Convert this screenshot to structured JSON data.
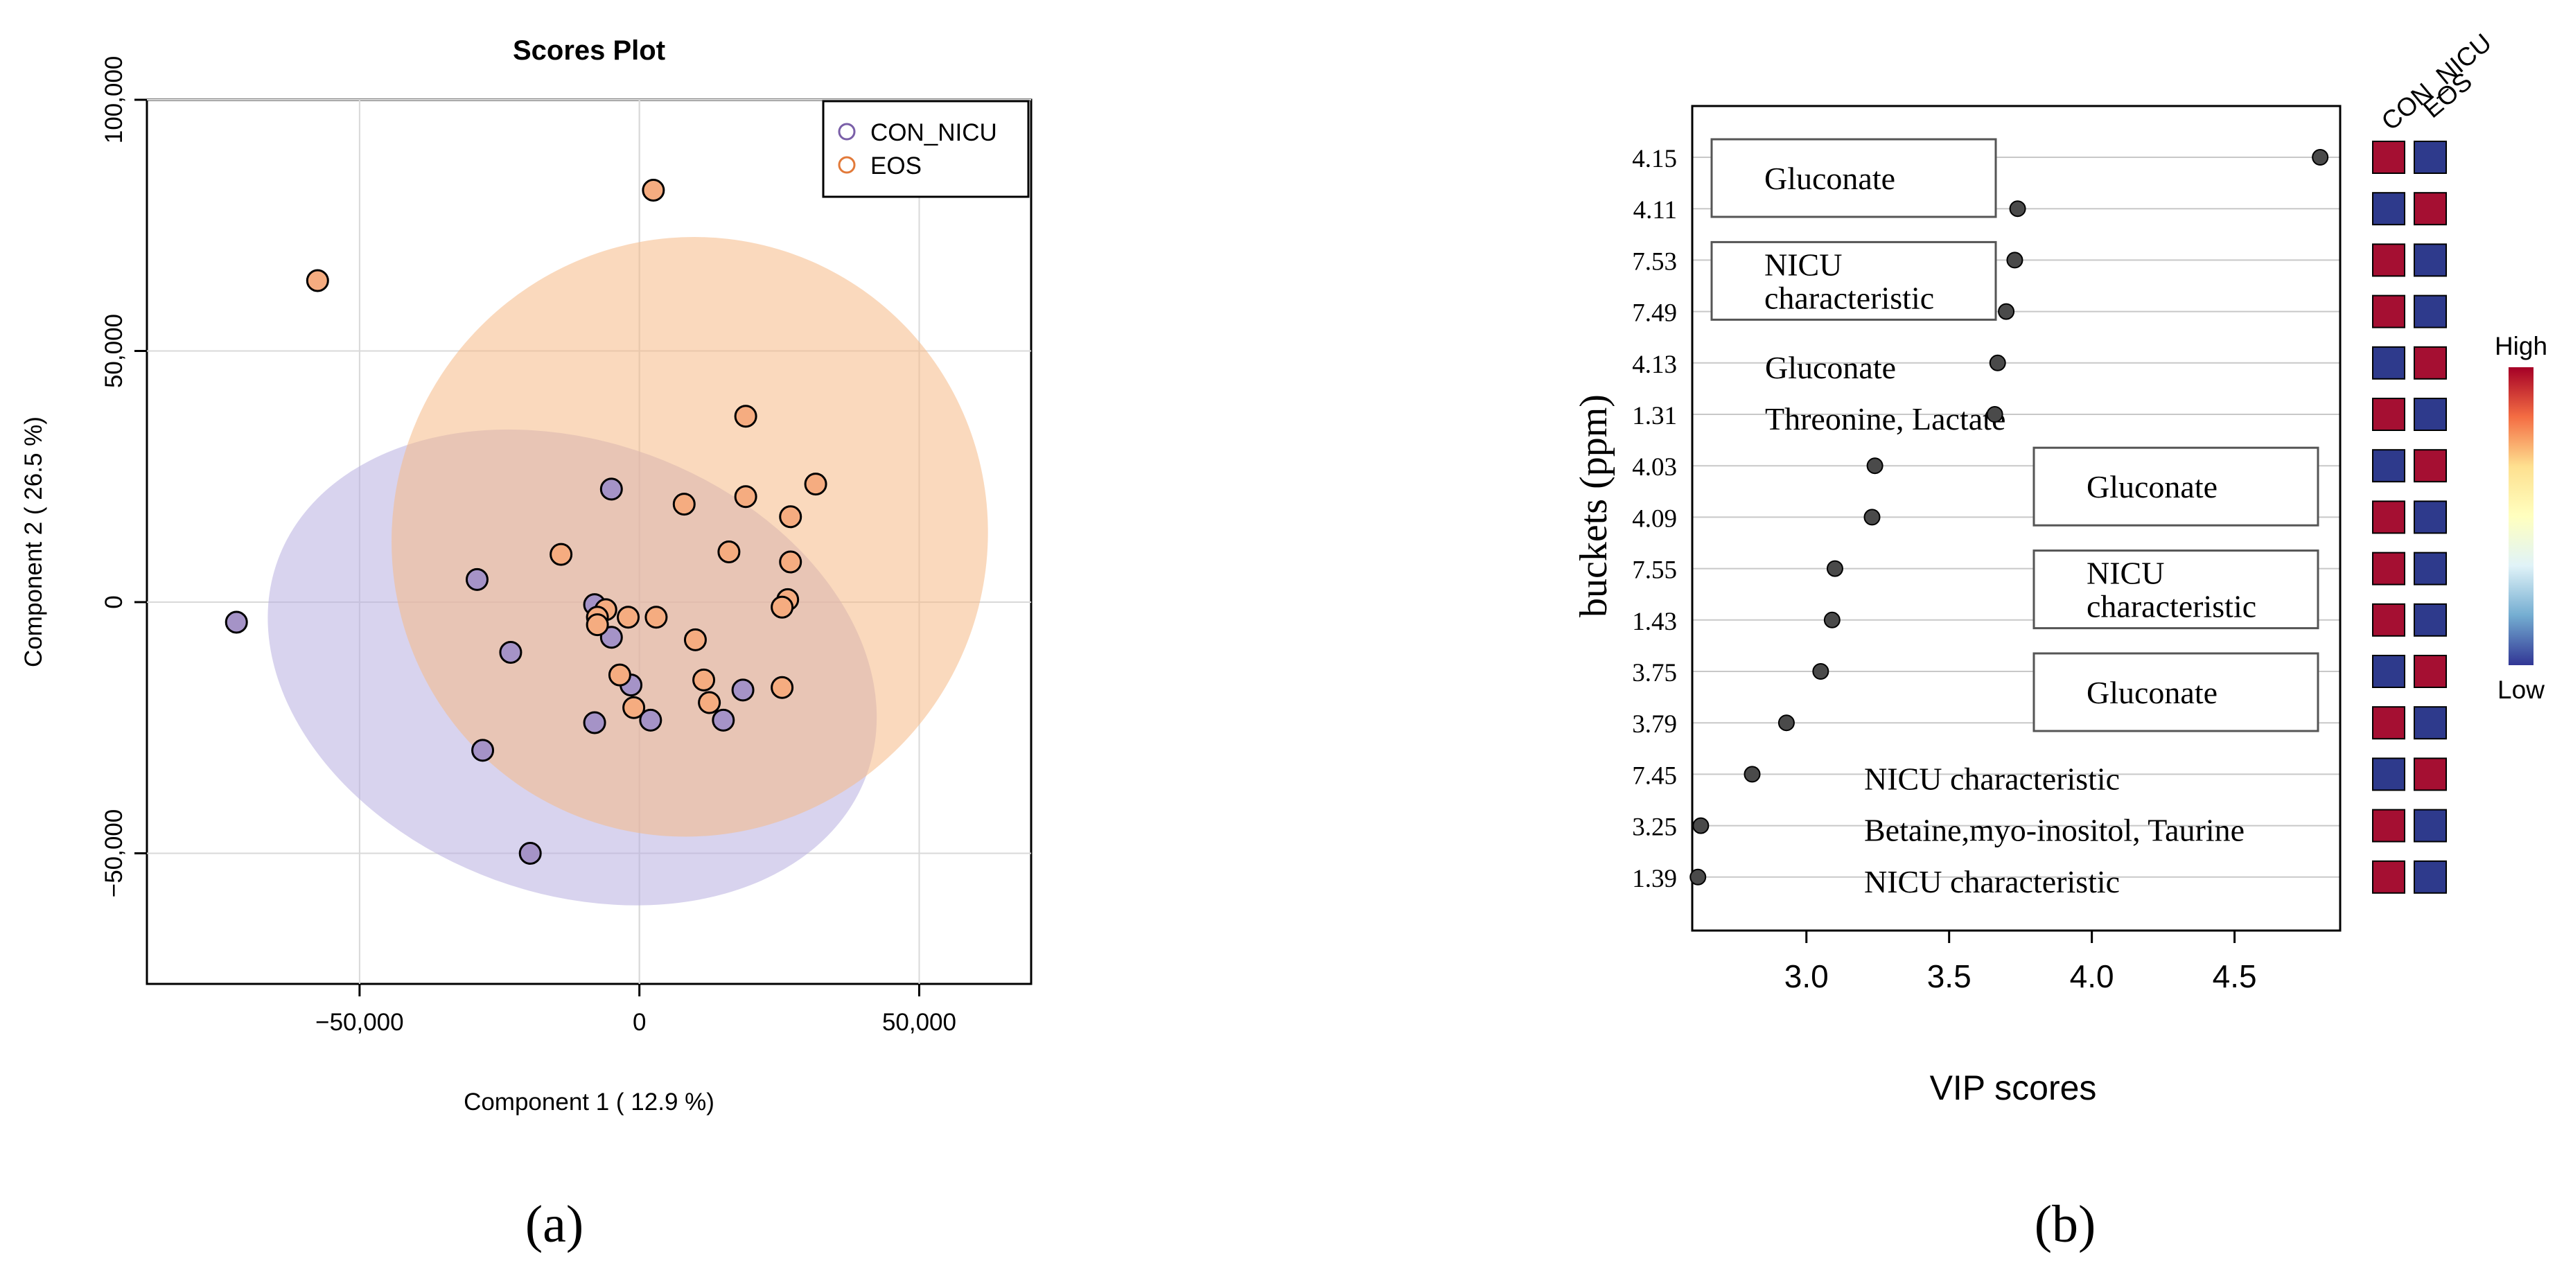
{
  "chart_data": [
    {
      "type": "scatter",
      "title": "Scores Plot",
      "xlabel": "Component 1 ( 12.9 %)",
      "ylabel": "Component 2 ( 26.5 %)",
      "xlim": [
        -88000,
        70000
      ],
      "ylim": [
        -76000,
        100000
      ],
      "xticks": [
        -50000,
        0,
        50000
      ],
      "xtick_labels": [
        "−50,000",
        "0",
        "50,000"
      ],
      "yticks": [
        -50000,
        0,
        50000,
        100000
      ],
      "ytick_labels": [
        "−50,000",
        "0",
        "50,000",
        "100,000"
      ],
      "grid": true,
      "legend_position": "top-right",
      "legend": [
        "CON_NICU",
        "EOS"
      ],
      "colors": {
        "CON_NICU": "#a593c7",
        "CON_NICU_legend": "#7a5fa8",
        "EOS": "#f5ac80",
        "EOS_legend": "#e27a3a",
        "CON_NICU_ellipse": "#b8aee0",
        "EOS_ellipse": "#f5b987"
      },
      "ellipses": [
        {
          "series": "CON_NICU",
          "cx": -12000,
          "cy": -13000,
          "rx": 56000,
          "ry": 45000,
          "angle_deg": 20
        },
        {
          "series": "EOS",
          "cx": 9000,
          "cy": 13000,
          "rx": 53000,
          "ry": 60000,
          "angle_deg": 35
        }
      ],
      "series": [
        {
          "name": "CON_NICU",
          "points": [
            [
              -72000,
              -4000
            ],
            [
              -29000,
              4500
            ],
            [
              -23000,
              -10000
            ],
            [
              -28000,
              -29500
            ],
            [
              -19500,
              -50000
            ],
            [
              -5000,
              22500
            ],
            [
              -8000,
              -500
            ],
            [
              -5000,
              -7000
            ],
            [
              -8000,
              -24000
            ],
            [
              -1500,
              -16500
            ],
            [
              2000,
              -23500
            ],
            [
              15000,
              -23500
            ],
            [
              18500,
              -17500
            ]
          ]
        },
        {
          "name": "EOS",
          "points": [
            [
              -57500,
              64000
            ],
            [
              2500,
              82000
            ],
            [
              19000,
              37000
            ],
            [
              31500,
              23500
            ],
            [
              19000,
              21000
            ],
            [
              8000,
              19500
            ],
            [
              27000,
              17000
            ],
            [
              -14000,
              9500
            ],
            [
              16000,
              10000
            ],
            [
              27000,
              8000
            ],
            [
              26500,
              500
            ],
            [
              25500,
              -1000
            ],
            [
              -6000,
              -1500
            ],
            [
              -7500,
              -3000
            ],
            [
              -7500,
              -4500
            ],
            [
              -2000,
              -3000
            ],
            [
              3000,
              -3000
            ],
            [
              10000,
              -7500
            ],
            [
              -3500,
              -14500
            ],
            [
              11500,
              -15500
            ],
            [
              25500,
              -17000
            ],
            [
              12500,
              -20000
            ],
            [
              -1000,
              -21000
            ]
          ]
        }
      ]
    },
    {
      "type": "scatter",
      "subtype": "vip_dot_plot",
      "xlabel": "VIP scores",
      "ylabel": "buckets (ppm)",
      "xlim": [
        2.6,
        4.87
      ],
      "xticks": [
        3.0,
        3.5,
        4.0,
        4.5
      ],
      "xtick_labels": [
        "3.0",
        "3.5",
        "4.0",
        "4.5"
      ],
      "categories": [
        "4.15",
        "4.11",
        "7.53",
        "7.49",
        "4.13",
        "1.31",
        "4.03",
        "4.09",
        "7.55",
        "1.43",
        "3.75",
        "3.79",
        "7.45",
        "3.25",
        "1.39"
      ],
      "values": [
        4.8,
        3.74,
        3.73,
        3.7,
        3.67,
        3.66,
        3.24,
        3.23,
        3.1,
        3.09,
        3.05,
        2.93,
        2.81,
        2.63,
        2.62
      ],
      "heatmap": {
        "columns": [
          "CON_NICU",
          "EOS"
        ],
        "cells": [
          [
            "High",
            "Low"
          ],
          [
            "Low",
            "High"
          ],
          [
            "High",
            "Low"
          ],
          [
            "High",
            "Low"
          ],
          [
            "Low",
            "High"
          ],
          [
            "High",
            "Low"
          ],
          [
            "Low",
            "High"
          ],
          [
            "High",
            "Low"
          ],
          [
            "High",
            "Low"
          ],
          [
            "High",
            "Low"
          ],
          [
            "Low",
            "High"
          ],
          [
            "High",
            "Low"
          ],
          [
            "Low",
            "High"
          ],
          [
            "High",
            "Low"
          ],
          [
            "High",
            "Low"
          ]
        ],
        "colors": {
          "High": "#a50f32",
          "Low": "#2e3a8c"
        },
        "colorbar": {
          "high_label": "High",
          "low_label": "Low",
          "stops": [
            "#a50026",
            "#f46d43",
            "#fee090",
            "#ffffbf",
            "#e0f3f8",
            "#74add1",
            "#313695"
          ]
        }
      },
      "annotations": [
        {
          "text": "Gluconate",
          "row_index": 0,
          "boxed": true
        },
        {
          "text": "NICU\ncharacteristic",
          "row_index": 2,
          "boxed": true
        },
        {
          "text": "Gluconate",
          "row_index": 4,
          "boxed": false
        },
        {
          "text": "Threonine, Lactate",
          "row_index": 5,
          "boxed": false
        },
        {
          "text": "Gluconate",
          "row_index": 6,
          "boxed": true
        },
        {
          "text": "NICU\ncharacteristic",
          "row_index": 8,
          "boxed": true
        },
        {
          "text": "Gluconate",
          "row_index": 10,
          "boxed": true
        },
        {
          "text": "NICU characteristic",
          "row_index": 12,
          "boxed": false
        },
        {
          "text": "Betaine,myo-inositol, Taurine",
          "row_index": 13,
          "boxed": false
        },
        {
          "text": "NICU characteristic",
          "row_index": 14,
          "boxed": false
        }
      ]
    }
  ],
  "panel_labels": {
    "a": "(a)",
    "b": "(b)"
  }
}
